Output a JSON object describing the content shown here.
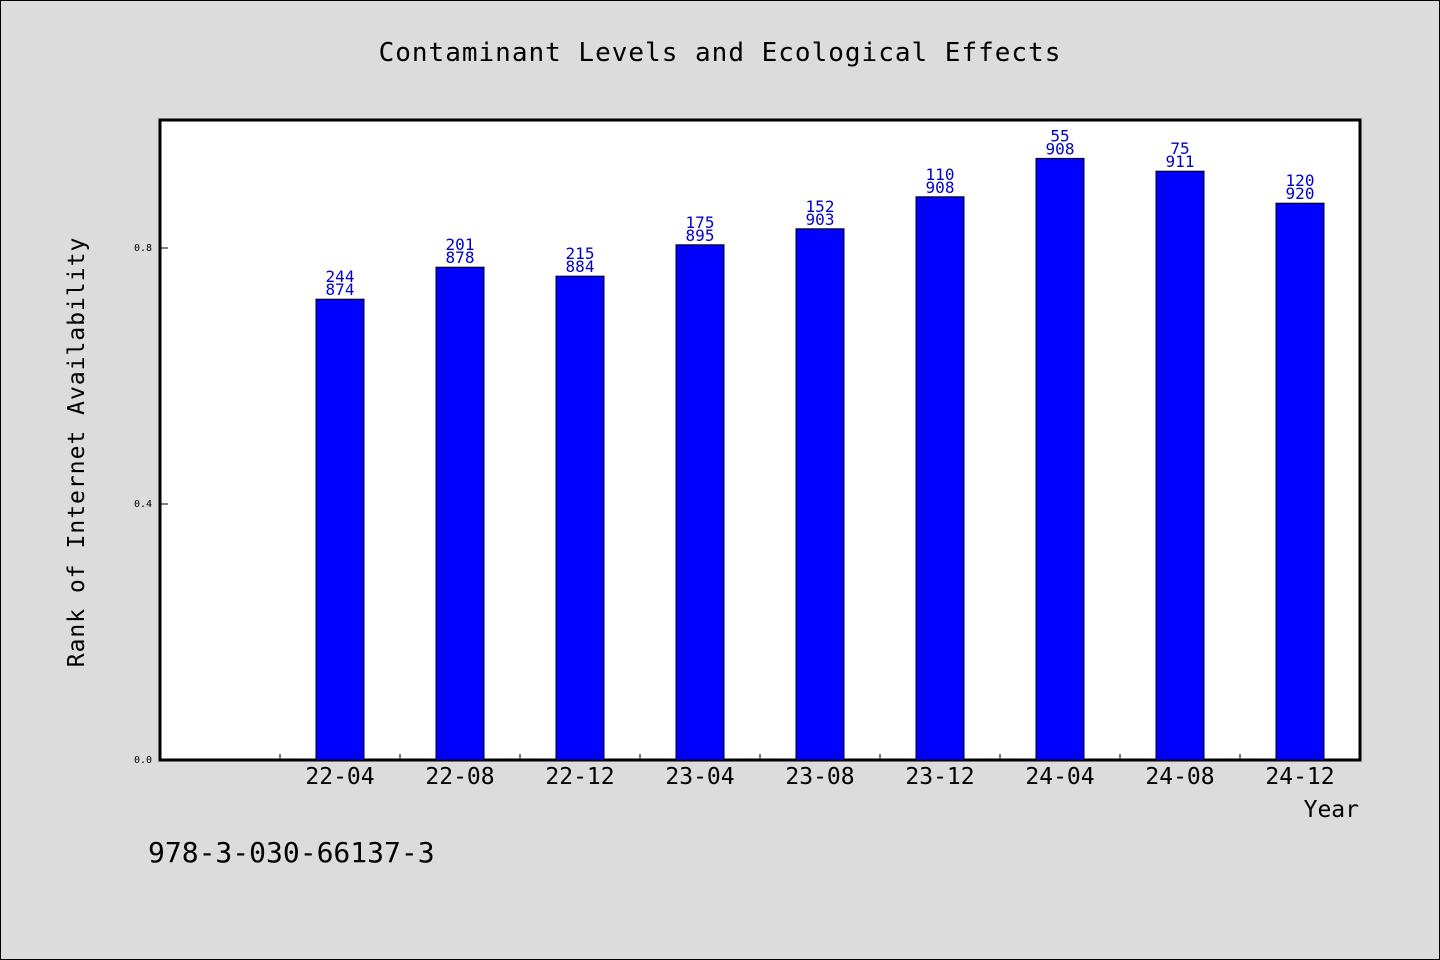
{
  "chart_data": {
    "type": "bar",
    "title": "Contaminant Levels and Ecological Effects",
    "xlabel": "Year",
    "ylabel": "Rank of Internet Availability",
    "categories": [
      "",
      "22-04",
      "22-08",
      "22-12",
      "23-04",
      "23-08",
      "23-12",
      "24-04",
      "24-08",
      "24-12"
    ],
    "values": [
      null,
      0.72,
      0.77,
      0.756,
      0.805,
      0.83,
      0.88,
      0.94,
      0.92,
      0.87
    ],
    "bar_labels": [
      null,
      [
        "244",
        "874"
      ],
      [
        "201",
        "878"
      ],
      [
        "215",
        "884"
      ],
      [
        "175",
        "895"
      ],
      [
        "152",
        "903"
      ],
      [
        "110",
        "908"
      ],
      [
        "55",
        "908"
      ],
      [
        "75",
        "911"
      ],
      [
        "120",
        "920"
      ]
    ],
    "yticks": [
      "0.0",
      "0.4",
      "0.8"
    ],
    "ytick_values": [
      0.0,
      0.4,
      0.8
    ],
    "ylim": [
      0,
      1.0
    ],
    "grid": false,
    "colors": {
      "bar": "#0000ff",
      "label": "#0000cc",
      "background": "#dcdcdc",
      "plot_background": "#ffffff"
    }
  },
  "footer": {
    "isbn": "978-3-030-66137-3"
  }
}
